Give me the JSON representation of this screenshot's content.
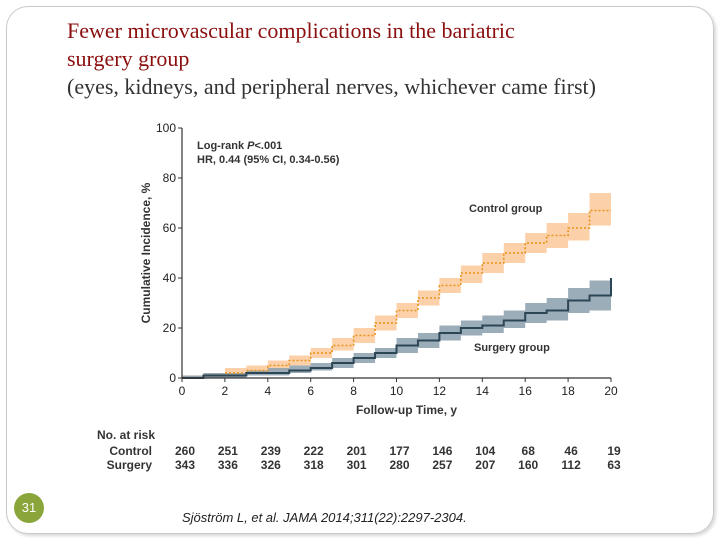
{
  "slide": {
    "title_line1": "Fewer microvascular complications in the bariatric",
    "title_line2": "surgery group",
    "subtitle": "(eyes, kidneys, and peripheral nerves, whichever came first)",
    "slide_number": "31",
    "citation": "Sjöström L, et al. JAMA 2014;311(22):2297-2304."
  },
  "chart_data": {
    "type": "line",
    "title": "",
    "xlabel": "Follow-up Time, y",
    "ylabel": "Cumulative Incidence, %",
    "xlim": [
      0,
      20
    ],
    "ylim": [
      0,
      100
    ],
    "x_ticks": [
      0,
      2,
      4,
      6,
      8,
      10,
      12,
      14,
      16,
      18,
      20
    ],
    "y_ticks": [
      0,
      20,
      40,
      60,
      80,
      100
    ],
    "grid": false,
    "annotation_line1_prefix": "Log-rank ",
    "annotation_line1_p": "P",
    "annotation_line1_suffix": "<.001",
    "annotation_line2": "HR, 0.44 (95% CI, 0.34-0.56)",
    "series": [
      {
        "name": "Control group",
        "color": "#e8931e",
        "band_color": "#fbc99a",
        "x": [
          0,
          1,
          2,
          3,
          4,
          5,
          6,
          7,
          8,
          9,
          10,
          11,
          12,
          13,
          14,
          15,
          16,
          17,
          18,
          19,
          20
        ],
        "y": [
          0,
          1,
          2,
          3,
          5,
          7,
          10,
          13,
          17,
          22,
          27,
          32,
          37,
          42,
          46,
          50,
          54,
          57,
          60,
          67,
          67
        ],
        "lower": [
          0,
          0,
          1,
          2,
          3,
          5,
          8,
          11,
          14,
          19,
          24,
          29,
          34,
          38,
          42,
          46,
          50,
          52,
          55,
          61,
          60
        ],
        "upper": [
          1,
          2,
          4,
          5,
          7,
          9,
          12,
          16,
          20,
          25,
          30,
          35,
          40,
          45,
          50,
          54,
          58,
          62,
          66,
          74,
          74
        ]
      },
      {
        "name": "Surgery group",
        "color": "#2d4656",
        "band_color": "#8b9fae",
        "x": [
          0,
          1,
          2,
          3,
          4,
          5,
          6,
          7,
          8,
          9,
          10,
          11,
          12,
          13,
          14,
          15,
          16,
          17,
          18,
          19,
          20
        ],
        "y": [
          0,
          1,
          1,
          2,
          2,
          3,
          4,
          6,
          8,
          10,
          13,
          15,
          18,
          20,
          21,
          23,
          26,
          27,
          31,
          33,
          40
        ],
        "lower": [
          0,
          0,
          0,
          1,
          1,
          2,
          3,
          4,
          6,
          8,
          10,
          12,
          15,
          17,
          18,
          20,
          22,
          23,
          26,
          27,
          33
        ],
        "upper": [
          1,
          2,
          2,
          3,
          4,
          5,
          6,
          8,
          10,
          12,
          16,
          18,
          21,
          23,
          25,
          27,
          30,
          32,
          36,
          39,
          47
        ]
      }
    ],
    "at_risk": {
      "heading": "No. at risk",
      "x": [
        0,
        2,
        4,
        6,
        8,
        10,
        12,
        14,
        16,
        18,
        20
      ],
      "rows": [
        {
          "label": "Control",
          "values": [
            "260",
            "251",
            "239",
            "222",
            "201",
            "177",
            "146",
            "104",
            "68",
            "46",
            "19"
          ]
        },
        {
          "label": "Surgery",
          "values": [
            "343",
            "336",
            "326",
            "318",
            "301",
            "280",
            "257",
            "207",
            "160",
            "112",
            "63"
          ]
        }
      ]
    }
  }
}
